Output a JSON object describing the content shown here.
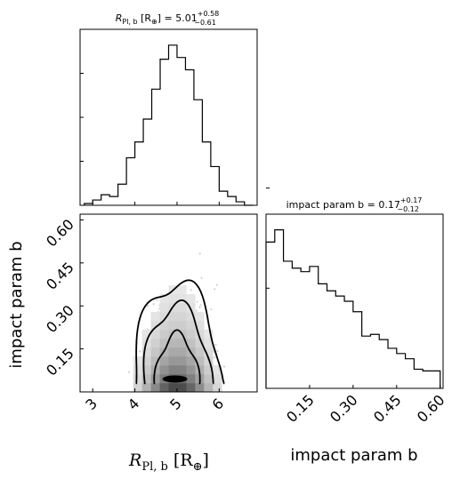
{
  "chart_data": [
    {
      "type": "histogram",
      "variable": "R_Pl,b",
      "title": {
        "lhs": "R",
        "sub": "Pl, b",
        "unit": "[R",
        "unit_sub": "⊕",
        "unit_close": "]",
        "eq": "= 5.01",
        "sup": "+0.58",
        "sub2": "−0.61"
      },
      "xlim": [
        2.7,
        6.9
      ],
      "bin_edges": [
        2.8,
        3.0,
        3.2,
        3.4,
        3.6,
        3.8,
        4.0,
        4.2,
        4.4,
        4.6,
        4.8,
        5.0,
        5.2,
        5.4,
        5.6,
        5.8,
        6.0,
        6.2,
        6.4,
        6.6,
        6.8
      ],
      "counts": [
        1,
        3,
        6,
        5,
        12,
        27,
        36,
        49,
        66,
        83,
        91,
        84,
        77,
        60,
        36,
        22,
        8,
        5,
        2,
        0
      ],
      "ymax": 100
    },
    {
      "type": "histogram",
      "variable": "impact param b",
      "title": {
        "label": "impact param b",
        "eq": "= 0.17",
        "sup": "+0.17",
        "sub2": "−0.12"
      },
      "xlim": [
        0.0,
        0.61
      ],
      "xticks": [
        "0.15",
        "0.30",
        "0.45",
        "0.60"
      ],
      "xtick_values": [
        0.15,
        0.3,
        0.45,
        0.6
      ],
      "xlabel": "impact param b",
      "bin_edges": [
        0.0,
        0.03,
        0.06,
        0.09,
        0.12,
        0.15,
        0.18,
        0.21,
        0.24,
        0.27,
        0.3,
        0.33,
        0.36,
        0.39,
        0.42,
        0.45,
        0.48,
        0.51,
        0.54,
        0.57,
        0.6
      ],
      "counts": [
        84,
        91,
        73,
        69,
        67,
        70,
        60,
        56,
        53,
        50,
        44,
        30,
        31,
        28,
        23,
        20,
        17,
        11,
        10,
        10
      ],
      "ymax": 100
    },
    {
      "type": "2d-histogram-contour",
      "xlim": [
        2.7,
        6.9
      ],
      "ylim": [
        0.0,
        0.62
      ],
      "xticks": [
        "3",
        "4",
        "5",
        "6"
      ],
      "xtick_values": [
        3,
        4,
        5,
        6
      ],
      "yticks": [
        "0.15",
        "0.30",
        "0.45",
        "0.60"
      ],
      "ytick_values": [
        0.15,
        0.3,
        0.45,
        0.6
      ],
      "xlabel": {
        "main": "R",
        "sub": "Pl, b",
        "unit": "[R",
        "unit_sub": "⊕",
        "unit_close": "]"
      },
      "ylabel": "impact param b"
    }
  ]
}
